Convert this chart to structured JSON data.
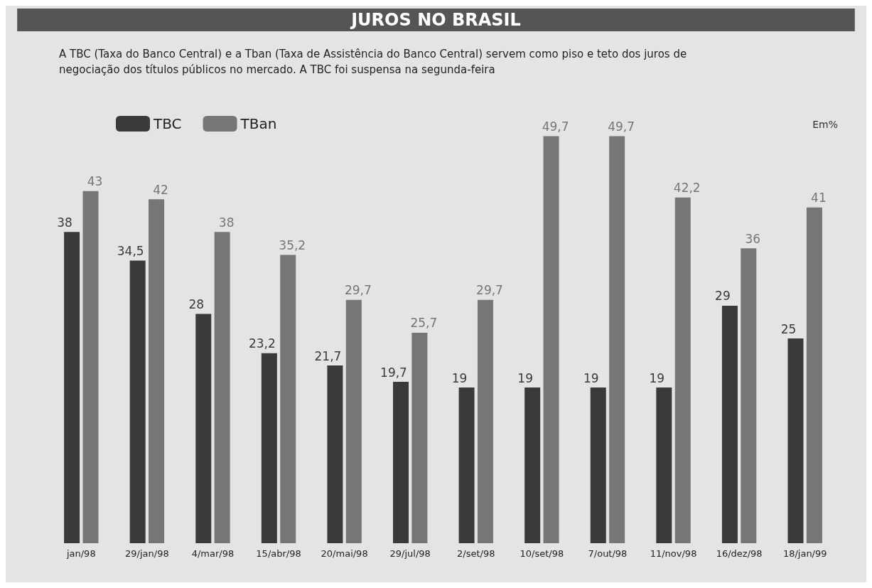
{
  "chart_data": {
    "type": "bar",
    "title": "JUROS NO BRASIL",
    "subtitle": "A TBC (Taxa do Banco Central) e a Tban (Taxa de Assistência do Banco Central) servem como piso e teto dos juros de negociação dos títulos públicos no mercado. A TBC foi suspensa na segunda-feira",
    "categories": [
      "jan/98",
      "29/jan/98",
      "4/mar/98",
      "15/abr/98",
      "20/mai/98",
      "29/jul/98",
      "2/set/98",
      "10/set/98",
      "7/out/98",
      "11/nov/98",
      "16/dez/98",
      "18/jan/99"
    ],
    "series": [
      {
        "name": "TBC",
        "color": "#3a3a3a",
        "values": [
          38,
          34.5,
          28,
          23.2,
          21.7,
          19.7,
          19,
          19,
          19,
          19,
          29,
          25
        ],
        "value_labels": [
          "38",
          "34,5",
          "28",
          "23,2",
          "21,7",
          "19,7",
          "19",
          "19",
          "19",
          "19",
          "29",
          "25"
        ]
      },
      {
        "name": "TBan",
        "color": "#767676",
        "values": [
          43,
          42,
          38,
          35.2,
          29.7,
          25.7,
          29.7,
          49.7,
          49.7,
          42.2,
          36,
          41
        ],
        "value_labels": [
          "43",
          "42",
          "38",
          "35,2",
          "29,7",
          "25,7",
          "29,7",
          "49,7",
          "49,7",
          "42,2",
          "36",
          "41"
        ]
      }
    ],
    "annotations": [
      "Em%"
    ],
    "legend": "top left"
  }
}
